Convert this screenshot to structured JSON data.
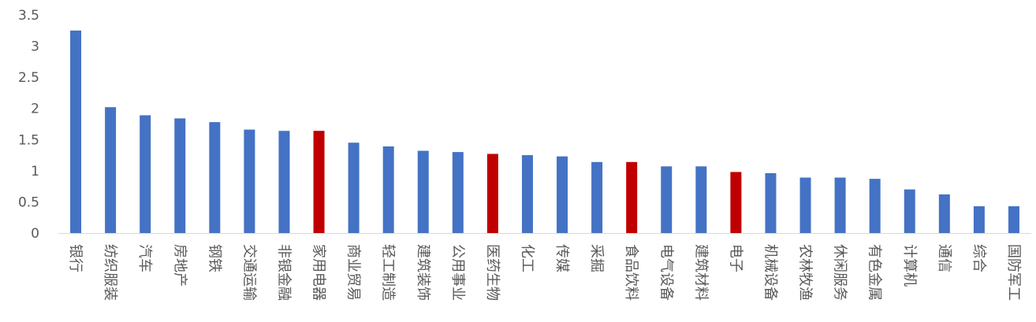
{
  "chart_data": {
    "type": "bar",
    "title": "",
    "xlabel": "",
    "ylabel": "",
    "ylim": [
      0,
      3.5
    ],
    "yticks": [
      "0",
      "0.5",
      "1",
      "1.5",
      "2",
      "2.5",
      "3",
      "3.5"
    ],
    "grid": false,
    "legend": "none",
    "colors": {
      "default": "#4472C4",
      "highlight": "#C00000",
      "axis": "#D9D9D9",
      "text": "#595959"
    },
    "categories": [
      "银行",
      "纺织服装",
      "汽车",
      "房地产",
      "钢铁",
      "交通运输",
      "非银金融",
      "家用电器",
      "商业贸易",
      "轻工制造",
      "建筑装饰",
      "公用事业",
      "医药生物",
      "化工",
      "传媒",
      "采掘",
      "食品饮料",
      "电气设备",
      "建筑材料",
      "电子",
      "机械设备",
      "农林牧渔",
      "休闲服务",
      "有色金属",
      "计算机",
      "通信",
      "综合",
      "国防军工"
    ],
    "values": [
      3.25,
      2.02,
      1.89,
      1.84,
      1.78,
      1.66,
      1.64,
      1.64,
      1.45,
      1.39,
      1.32,
      1.3,
      1.27,
      1.25,
      1.23,
      1.14,
      1.14,
      1.07,
      1.07,
      0.98,
      0.96,
      0.89,
      0.89,
      0.87,
      0.7,
      0.62,
      0.43,
      0.43
    ],
    "highlight_categories": [
      "家用电器",
      "医药生物",
      "食品饮料",
      "电子"
    ]
  }
}
